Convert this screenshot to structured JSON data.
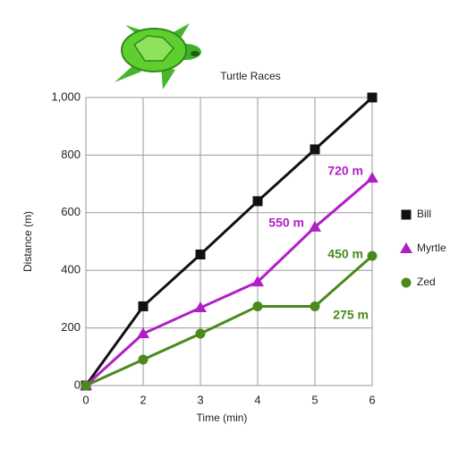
{
  "chart_data": {
    "type": "line",
    "title": "Turtle Races",
    "x_label": "Time (min)",
    "y_label": "Distance (m)",
    "categories": [
      "0",
      "2",
      "3",
      "4",
      "5",
      "6"
    ],
    "series": [
      {
        "name": "Bill",
        "color": "#111111",
        "marker": "square",
        "values": [
          0,
          275,
          455,
          640,
          820,
          1000
        ]
      },
      {
        "name": "Myrtle",
        "color": "#b01fc6",
        "marker": "triangle",
        "values": [
          0,
          180,
          270,
          360,
          550,
          720
        ]
      },
      {
        "name": "Zed",
        "color": "#4a8a1c",
        "marker": "circle",
        "values": [
          0,
          90,
          180,
          275,
          275,
          450
        ]
      }
    ],
    "annotations": [
      {
        "text": "720 m",
        "color": "#b01fc6"
      },
      {
        "text": "550 m",
        "color": "#b01fc6"
      },
      {
        "text": "450 m",
        "color": "#4a8a1c"
      },
      {
        "text": "275 m",
        "color": "#4a8a1c"
      }
    ],
    "ylim": [
      0,
      1000
    ],
    "yticks": [
      0,
      200,
      400,
      600,
      800,
      {
        "value": 1000,
        "label": "1,000"
      }
    ],
    "grid": true,
    "legend": "right"
  }
}
